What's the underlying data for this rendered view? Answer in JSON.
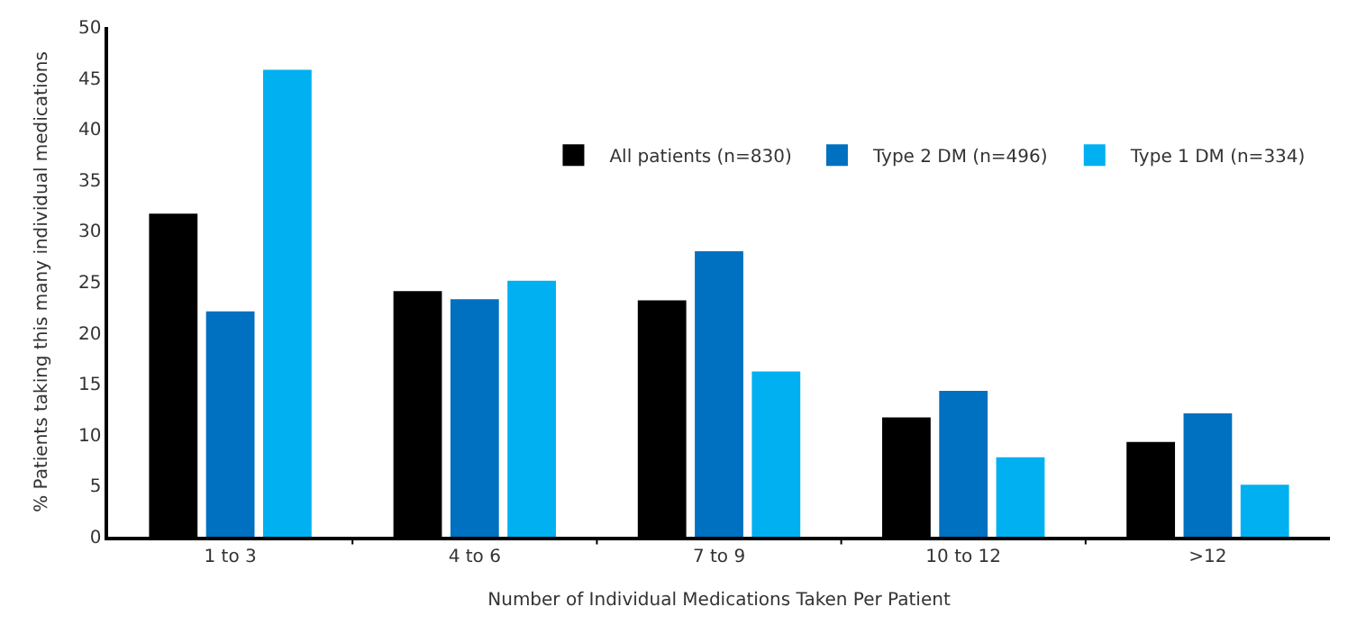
{
  "chart_data": {
    "type": "bar",
    "xlabel": "Number of Individual Medications Taken Per Patient",
    "ylabel": "% Patients taking this many individual medications",
    "categories": [
      "1 to 3",
      "4 to 6",
      "7 to 9",
      "10 to 12",
      ">12"
    ],
    "series": [
      {
        "name": "All patients (n=830)",
        "color": "#000000",
        "values": [
          31.7,
          24.1,
          23.2,
          11.7,
          9.3
        ]
      },
      {
        "name": "Type 2 DM (n=496)",
        "color": "#0070c0",
        "values": [
          22.1,
          23.3,
          28.0,
          14.3,
          12.1
        ]
      },
      {
        "name": "Type 1 DM (n=334)",
        "color": "#00b0f0",
        "values": [
          45.8,
          25.1,
          16.2,
          7.8,
          5.1
        ]
      }
    ],
    "ylim": [
      0,
      50
    ],
    "yticks": [
      0,
      5,
      10,
      15,
      20,
      25,
      30,
      35,
      40,
      45,
      50
    ],
    "legend": "top right"
  }
}
